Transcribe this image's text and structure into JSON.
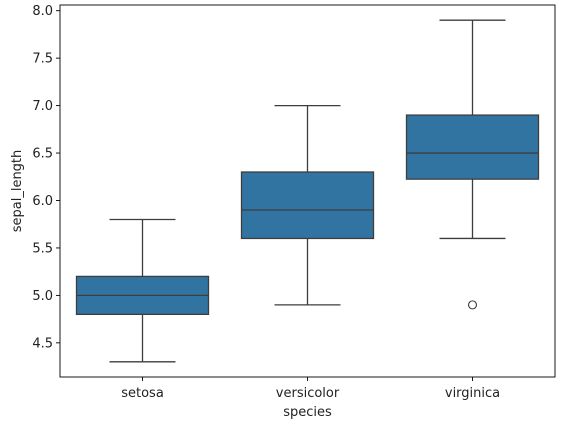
{
  "chart_data": {
    "type": "box",
    "xlabel": "species",
    "ylabel": "sepal_length",
    "ylim": [
      4.14,
      8.06
    ],
    "yticks": [
      "4.5",
      "5.0",
      "5.5",
      "6.0",
      "6.5",
      "7.0",
      "7.5",
      "8.0"
    ],
    "categories": [
      "setosa",
      "versicolor",
      "virginica"
    ],
    "boxes": [
      {
        "category": "setosa",
        "whisker_low": 4.3,
        "q1": 4.8,
        "median": 5.0,
        "q3": 5.2,
        "whisker_high": 5.8,
        "outliers": []
      },
      {
        "category": "versicolor",
        "whisker_low": 4.9,
        "q1": 5.6,
        "median": 5.9,
        "q3": 6.3,
        "whisker_high": 7.0,
        "outliers": []
      },
      {
        "category": "virginica",
        "whisker_low": 5.6,
        "q1": 6.225,
        "median": 6.5,
        "q3": 6.9,
        "whisker_high": 7.9,
        "outliers": [
          4.9
        ]
      }
    ],
    "box_color": "#3274a1",
    "line_color": "#3d3d3d",
    "grid": false
  }
}
